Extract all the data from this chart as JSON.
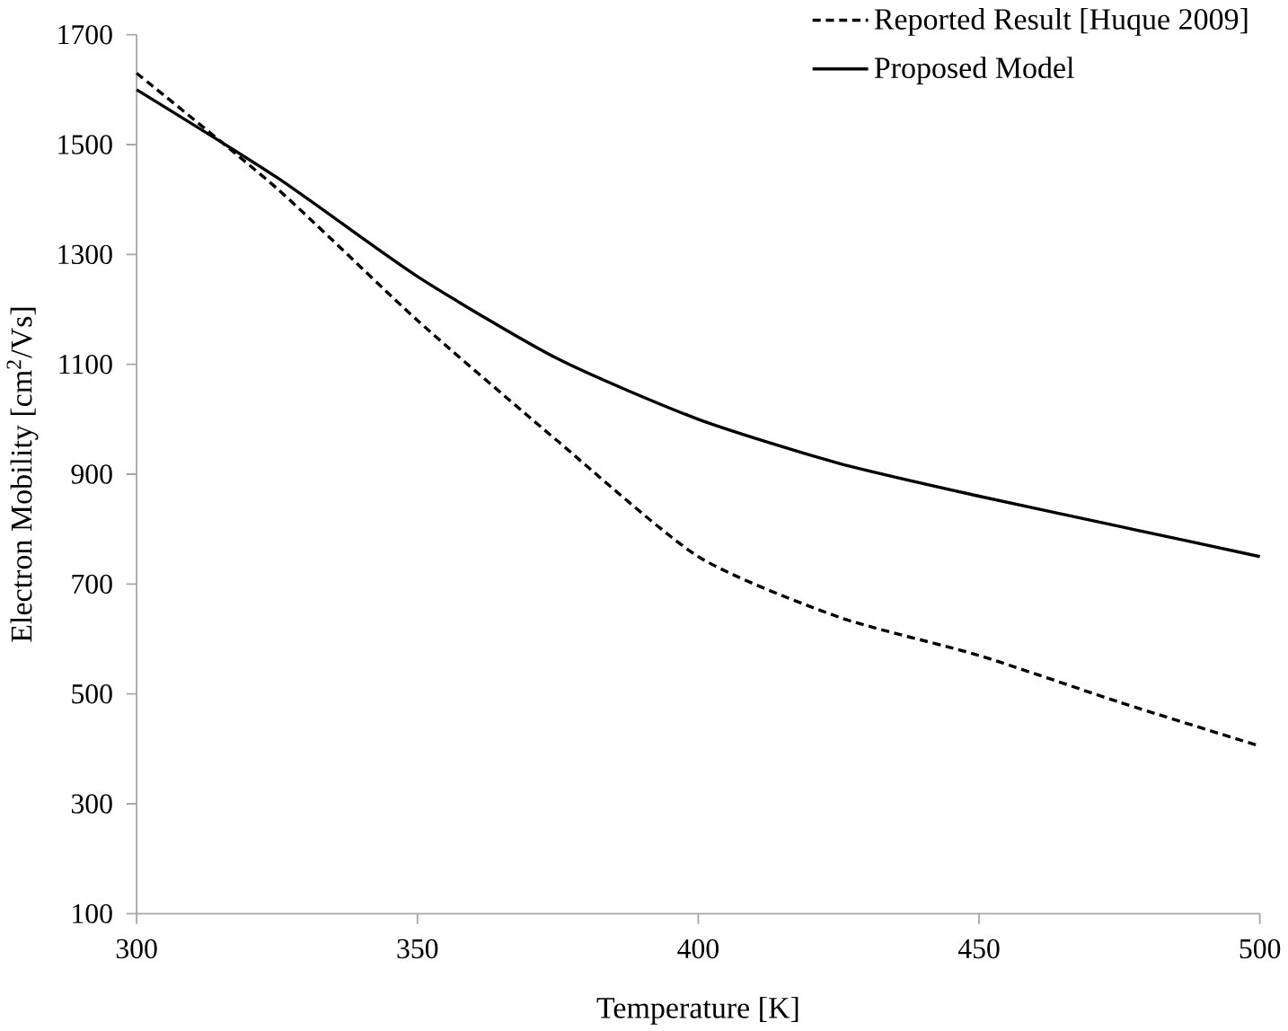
{
  "chart_data": {
    "type": "line",
    "xlabel": "Temperature [K]",
    "ylabel": "Electron Mobility [cm$^{2}$/Vs]",
    "x": [
      300,
      325,
      350,
      375,
      400,
      425,
      450,
      475,
      500
    ],
    "series": [
      {
        "name": "Reported Result [Huque 2009]",
        "color": "#000000",
        "line_style": "dashed",
        "values": [
          1630,
          1420,
          1180,
          960,
          750,
          640,
          570,
          485,
          405
        ]
      },
      {
        "name": "Proposed Model",
        "color": "#000000",
        "line_style": "solid",
        "values": [
          1600,
          1440,
          1260,
          1110,
          1000,
          920,
          860,
          805,
          750
        ]
      }
    ],
    "xlim": [
      300,
      500
    ],
    "xticks": [
      300,
      350,
      400,
      450,
      500
    ],
    "ylim": [
      100,
      1700
    ],
    "yticks": [
      100,
      300,
      500,
      700,
      900,
      1100,
      1300,
      1500,
      1700
    ],
    "grid": false,
    "legend": "top right",
    "marker": "none"
  }
}
